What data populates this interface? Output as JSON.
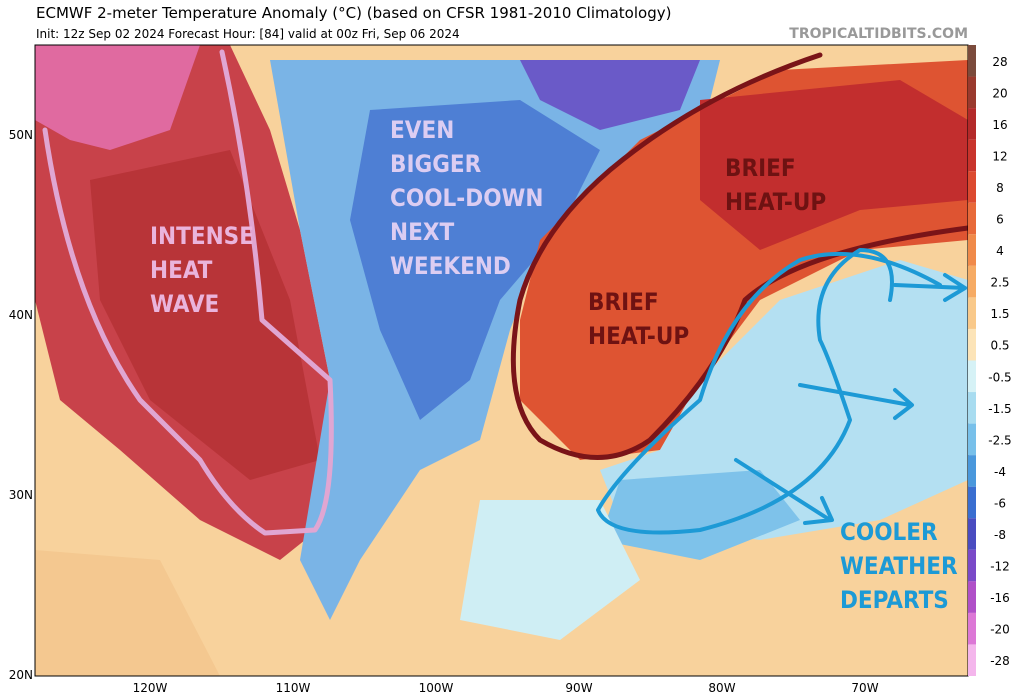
{
  "header": {
    "title": "ECMWF 2-meter Temperature Anomaly (°C) (based on CFSR 1981-2010 Climatology)",
    "subtitle": "Init: 12z Sep 02 2024   Forecast Hour: [84]   valid at 00z Fri, Sep 06 2024",
    "watermark": "TROPICALTIDBITS.COM"
  },
  "map": {
    "lat_labels": [
      "50N",
      "40N",
      "30N",
      "20N"
    ],
    "lon_labels": [
      "120W",
      "110W",
      "100W",
      "90W",
      "80W",
      "70W"
    ],
    "annotations": [
      {
        "lines": [
          "INTENSE",
          "HEAT",
          "WAVE"
        ],
        "color": "#eab4dc"
      },
      {
        "lines": [
          "EVEN",
          "BIGGER",
          "COOL-DOWN",
          "NEXT",
          "WEEKEND"
        ],
        "color": "#dccdf2"
      },
      {
        "lines": [
          "BRIEF",
          "HEAT-UP"
        ],
        "color": "#6e1212"
      },
      {
        "lines": [
          "BRIEF",
          "HEAT-UP"
        ],
        "color": "#6e1212"
      },
      {
        "lines": [
          "COOLER",
          "WEATHER",
          "DEPARTS"
        ],
        "color": "#1c9ad6"
      }
    ]
  },
  "colorbar": [
    {
      "label": "28",
      "color": "#7b4b3c"
    },
    {
      "label": "20",
      "color": "#9a3a2e"
    },
    {
      "label": "16",
      "color": "#b42a2a"
    },
    {
      "label": "12",
      "color": "#c9342c"
    },
    {
      "label": "8",
      "color": "#dc4a30"
    },
    {
      "label": "6",
      "color": "#e86a3a"
    },
    {
      "label": "4",
      "color": "#f08a4a"
    },
    {
      "label": "2.5",
      "color": "#f6ab64"
    },
    {
      "label": "1.5",
      "color": "#f9c98a"
    },
    {
      "label": "0.5",
      "color": "#fce4b8"
    },
    {
      "label": "-0.5",
      "color": "#d6f2f6"
    },
    {
      "label": "-1.5",
      "color": "#a8dcf0"
    },
    {
      "label": "-2.5",
      "color": "#78c0ea"
    },
    {
      "label": "-4",
      "color": "#4a98dc"
    },
    {
      "label": "-6",
      "color": "#3a6ed0"
    },
    {
      "label": "-8",
      "color": "#4a4cc0"
    },
    {
      "label": "-12",
      "color": "#7a4ac8"
    },
    {
      "label": "-16",
      "color": "#b050c8"
    },
    {
      "label": "-20",
      "color": "#dc78d6"
    },
    {
      "label": "-28",
      "color": "#f4b6ec"
    }
  ]
}
